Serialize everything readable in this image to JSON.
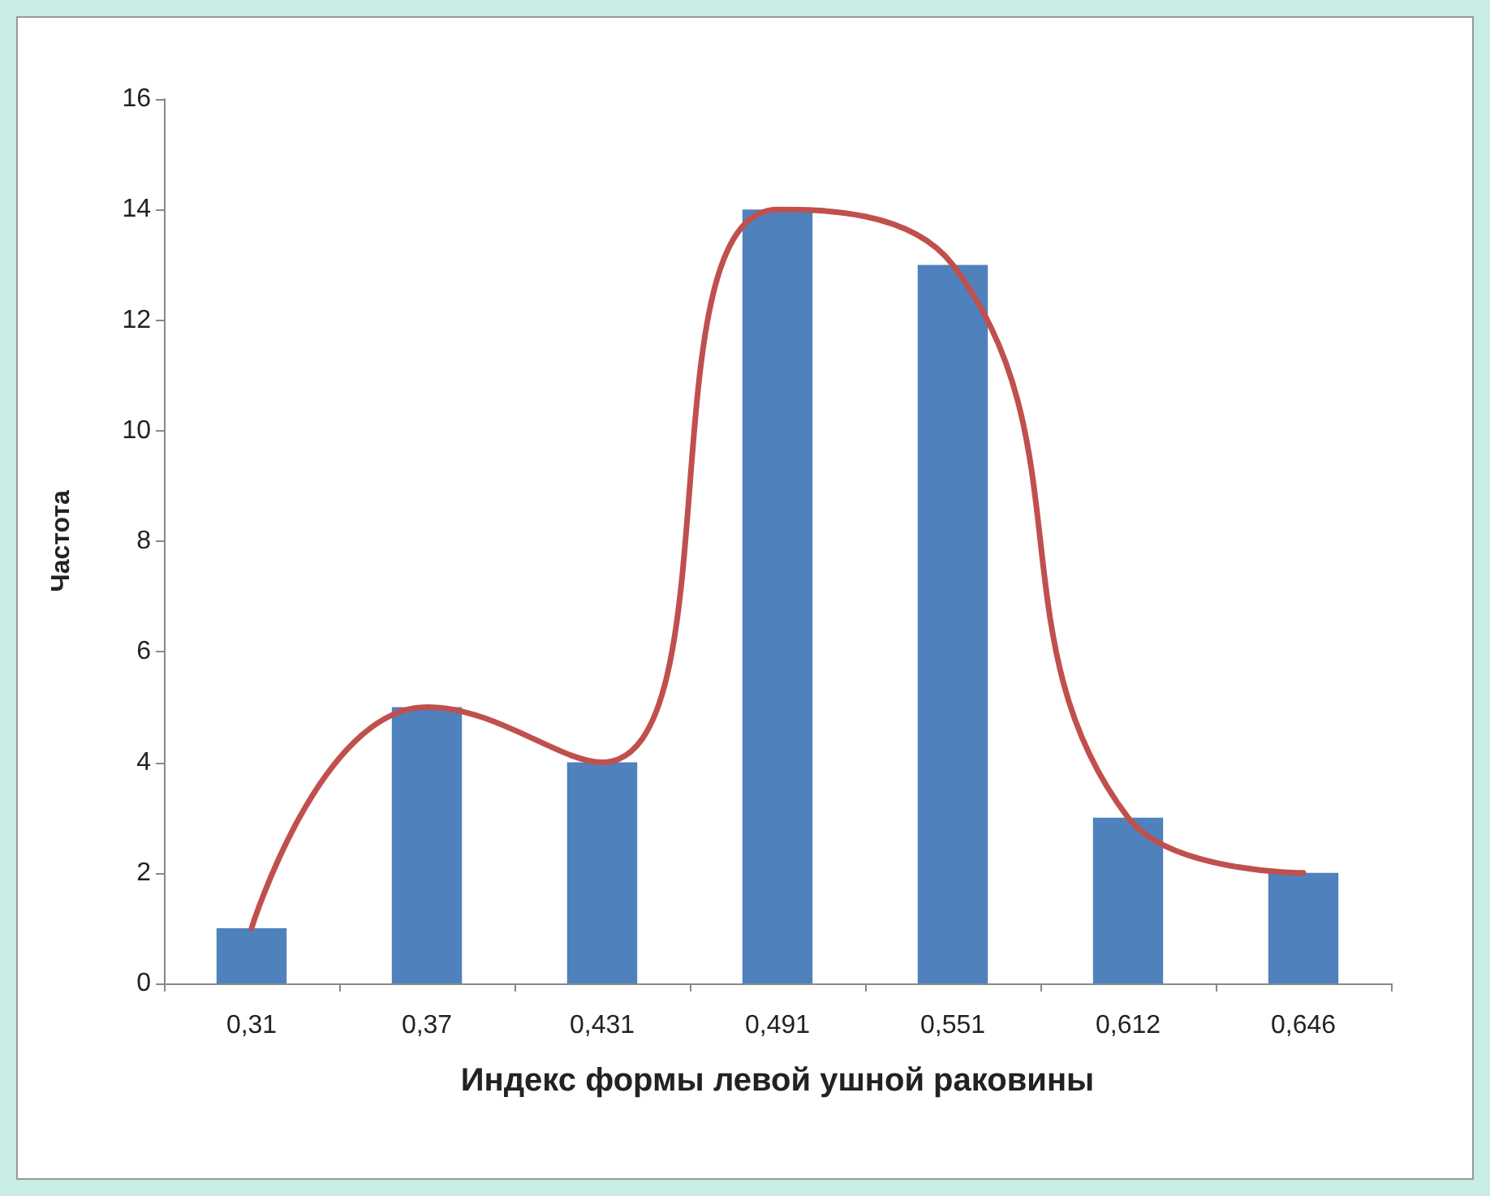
{
  "chart_data": {
    "type": "bar",
    "xlabel": "Индекс формы левой ушной раковины",
    "ylabel": "Частота",
    "categories": [
      "0,31",
      "0,37",
      "0,431",
      "0,491",
      "0,551",
      "0,612",
      "0,646"
    ],
    "series": [
      {
        "color": "#4f81bd",
        "values": [
          1,
          5,
          4,
          14,
          13,
          3,
          2
        ]
      },
      {
        "type": "line",
        "color": "#c0504d",
        "values": [
          1,
          5,
          4,
          14,
          13,
          3,
          2
        ],
        "marker": "none"
      }
    ],
    "ylim": [
      0,
      16
    ],
    "yticks": [
      0,
      2,
      4,
      6,
      8,
      10,
      12,
      14,
      16
    ],
    "grid": false
  }
}
